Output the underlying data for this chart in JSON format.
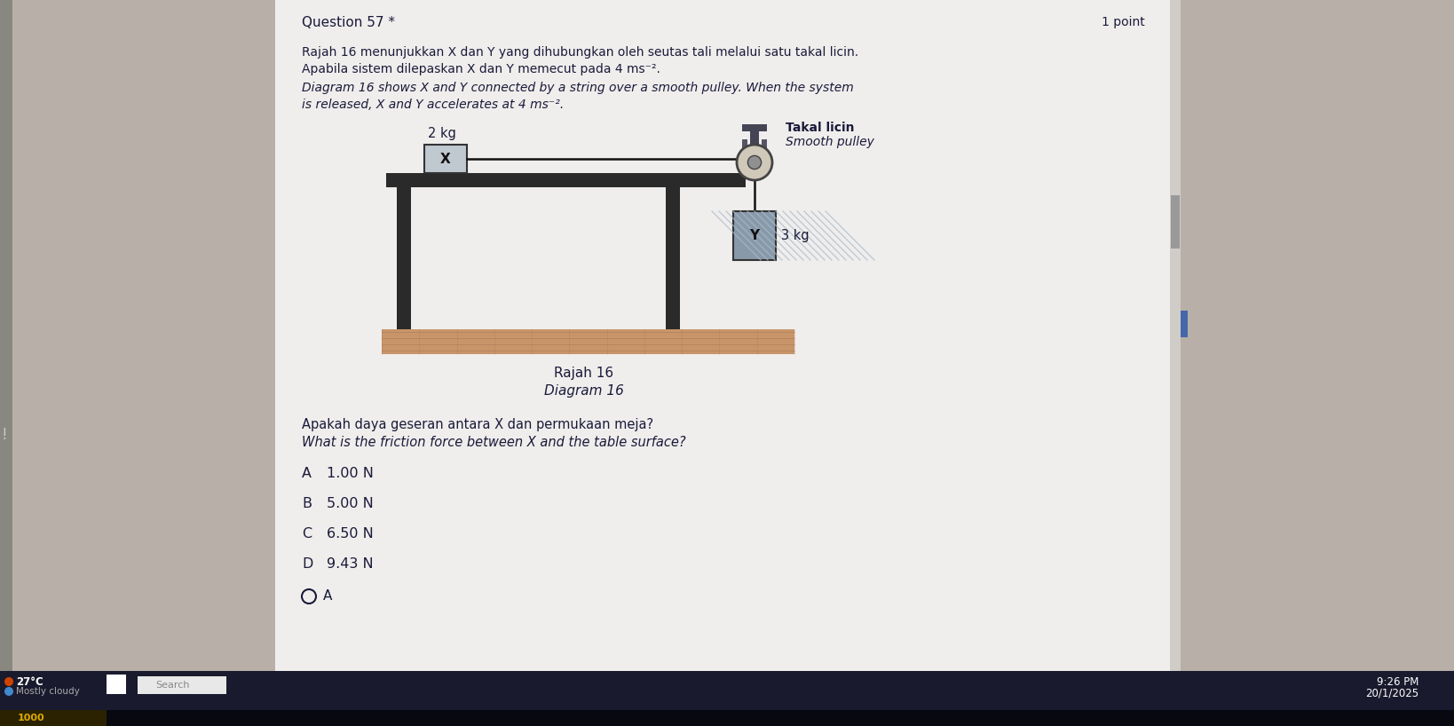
{
  "bg_outer": "#b8b0a8",
  "bg_content": "#f0eeec",
  "bg_left_panel": "#c0b8b0",
  "question_header": "Question 57 *",
  "points_text": "1 point",
  "text_line1": "Rajah 16 menunjukkan X dan Y yang dihubungkan oleh seutas tali melalui satu takal licin.",
  "text_line2": "Apabila sistem dilepaskan X dan Y memecut pada 4 ms⁻².",
  "text_line3": "Diagram 16 shows X and Y connected by a string over a smooth pulley. When the system",
  "text_line4": "is released, X and Y accelerates at 4 ms⁻².",
  "label_takal_licin": "Takal licin",
  "label_smooth_pulley": "Smooth pulley",
  "label_X_mass": "2 kg",
  "label_X": "X",
  "label_Y": "Y",
  "label_Y_mass": "3 kg",
  "diagram_caption1": "Rajah 16",
  "diagram_caption2": "Diagram 16",
  "question_malay": "Apakah daya geseran antara X dan permukaan meja?",
  "question_english": "What is the friction force between X and the table surface?",
  "options": [
    {
      "letter": "A",
      "text": "1.00 N"
    },
    {
      "letter": "B",
      "text": "5.00 N"
    },
    {
      "letter": "C",
      "text": "6.50 N"
    },
    {
      "letter": "D",
      "text": "9.43 N"
    }
  ],
  "text_color": "#1a1a3a",
  "table_dark": "#2a2a2a",
  "floor_color": "#c8956a",
  "floor_line_color": "#a07050",
  "X_box_fill": "#c0c8d0",
  "X_box_edge": "#333333",
  "Y_box_fill": "#8899aa",
  "Y_box_edge": "#333333",
  "string_color": "#111111",
  "pulley_fill": "#d0c8b8",
  "pulley_edge": "#444444",
  "bracket_color": "#555566",
  "taskbar_color": "#1a1a2e",
  "taskbar_text": "#ffffff",
  "scroll_bg": "#d0ccc8",
  "scroll_indicator": "#999999",
  "left_exclaim_color": "#dddddd"
}
